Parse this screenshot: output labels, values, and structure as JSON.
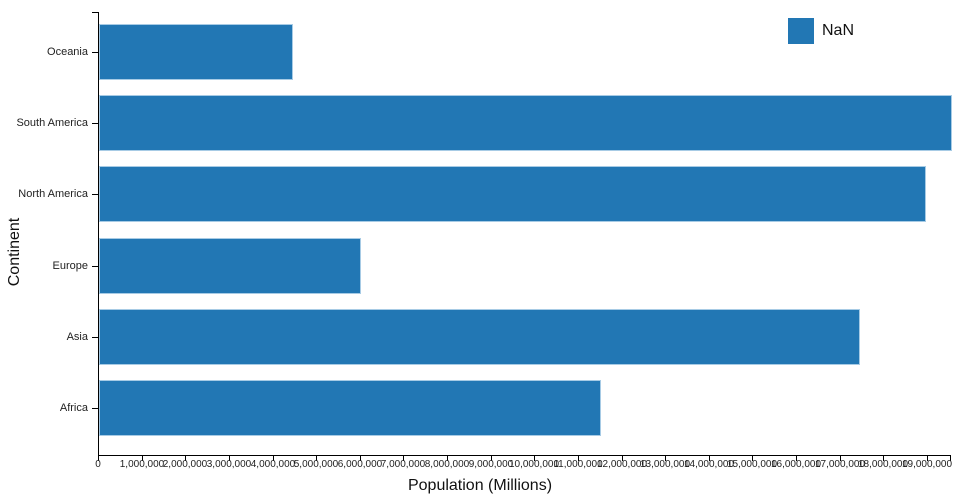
{
  "chart_data": {
    "type": "bar",
    "orientation": "horizontal",
    "title": "",
    "xlabel": "Population (Millions)",
    "ylabel": "Continent",
    "categories": [
      "Oceania",
      "South America",
      "North America",
      "Europe",
      "Asia",
      "Africa"
    ],
    "values": [
      4450000,
      19550000,
      18950000,
      6000000,
      17450000,
      11500000
    ],
    "xlim": [
      0,
      19550000
    ],
    "x_tick_interval": 1000000,
    "x_tick_labels": [
      "0",
      "1,000,000",
      "2,000,000",
      "3,000,000",
      "4,000,000",
      "5,000,000",
      "6,000,000",
      "7,000,000",
      "8,000,000",
      "9,000,000",
      "10,000,000",
      "11,000,000",
      "12,000,000",
      "13,000,000",
      "14,000,000",
      "15,000,000",
      "16,000,000",
      "17,000,000",
      "18,000,000",
      "19,000,000"
    ],
    "grid": false,
    "bar_color": "#2277b4",
    "bar_stroke": "#a7cbe5",
    "legend_position": "top-right",
    "legend": [
      {
        "label": "NaN",
        "color": "#2277b4"
      }
    ]
  }
}
